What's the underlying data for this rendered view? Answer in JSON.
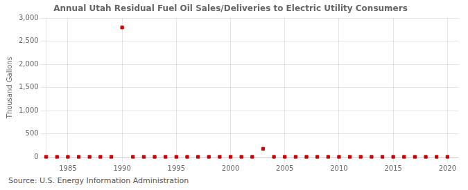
{
  "chart_data": {
    "type": "scatter",
    "title": "Annual Utah Residual Fuel Oil Sales/Deliveries to Electric Utility Consumers",
    "y_label": "Thousand Gallons",
    "annotations": [
      "Source: U.S. Energy Information Administration"
    ],
    "x": [
      1983,
      1984,
      1985,
      1986,
      1987,
      1988,
      1989,
      1990,
      1991,
      1992,
      1993,
      1994,
      1995,
      1996,
      1997,
      1998,
      1999,
      2000,
      2001,
      2002,
      2003,
      2004,
      2005,
      2006,
      2007,
      2008,
      2009,
      2010,
      2011,
      2012,
      2013,
      2014,
      2015,
      2016,
      2017,
      2018,
      2019,
      2020
    ],
    "values": [
      0,
      0,
      0,
      0,
      0,
      0,
      0,
      2800,
      0,
      0,
      0,
      0,
      0,
      0,
      0,
      0,
      0,
      0,
      0,
      0,
      175,
      0,
      0,
      0,
      0,
      0,
      0,
      0,
      0,
      0,
      0,
      0,
      0,
      0,
      0,
      0,
      0,
      0
    ],
    "color": "#cc0000",
    "marker": "square",
    "xlim": [
      1983,
      2021
    ],
    "xticks": [
      1985,
      1990,
      1995,
      2000,
      2005,
      2010,
      2015,
      2020
    ],
    "ylim": [
      0,
      3000
    ],
    "yticks": [
      0,
      500,
      {
        "value": 1000,
        "label": "1,000"
      },
      {
        "value": 1500,
        "label": "1,500"
      },
      {
        "value": 2000,
        "label": "2,000"
      },
      {
        "value": 2500,
        "label": "2,500"
      },
      {
        "value": 3000,
        "label": "3,000"
      }
    ],
    "grid": true
  }
}
